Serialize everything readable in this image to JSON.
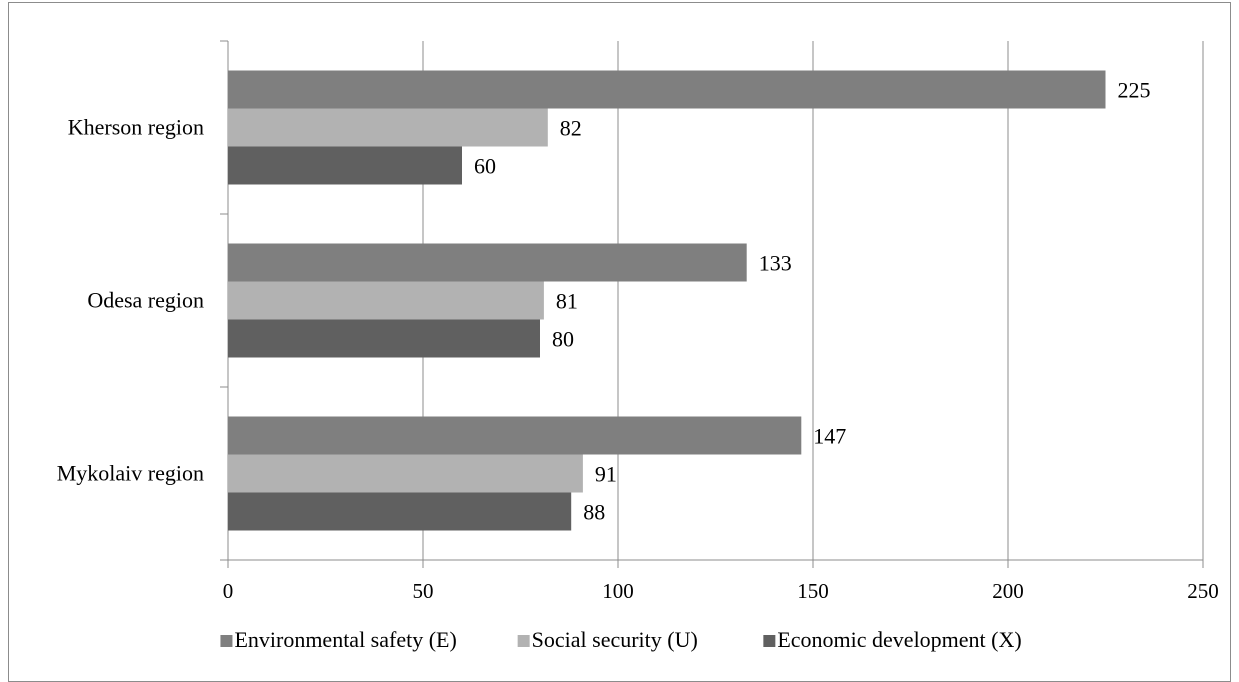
{
  "chart_data": {
    "type": "bar",
    "orientation": "horizontal",
    "categories": [
      "Kherson region",
      "Odesa region",
      "Mykolaiv region"
    ],
    "series": [
      {
        "name": "Environmental safety (E)",
        "color": "#7f7f7f",
        "values": [
          225,
          133,
          147
        ]
      },
      {
        "name": "Social security (U)",
        "color": "#b2b2b2",
        "values": [
          82,
          81,
          91
        ]
      },
      {
        "name": "Economic development (X)",
        "color": "#606060",
        "values": [
          60,
          80,
          88
        ]
      }
    ],
    "xlim": [
      0,
      250
    ],
    "xticks": [
      0,
      50,
      100,
      150,
      200,
      250
    ],
    "gridlines": true,
    "data_labels": true,
    "legend_position": "bottom"
  }
}
